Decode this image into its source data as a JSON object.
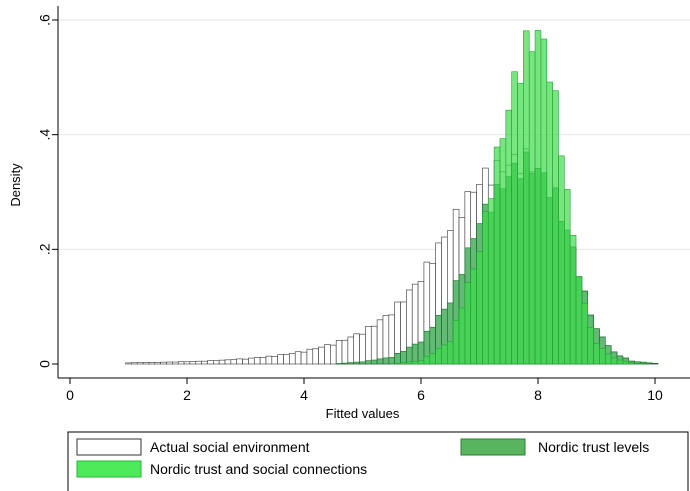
{
  "chart_data": {
    "type": "histogram",
    "xlabel": "Fitted values",
    "ylabel": "Density",
    "xlim": [
      -0.3,
      10.5
    ],
    "ylim": [
      0,
      0.62
    ],
    "x_ticks": [
      0,
      2,
      4,
      6,
      8,
      10
    ],
    "y_ticks": [
      0,
      0.2,
      0.4,
      0.6
    ],
    "y_tick_labels": [
      "0",
      ".2",
      ".4",
      ".6"
    ],
    "bin_width": 0.1,
    "legend_position": "bottom",
    "grid": true,
    "series": [
      {
        "name": "Actual social environment",
        "style": "outline",
        "fill": "#ffffff",
        "stroke": "#333333",
        "bins": [
          {
            "x": 1.0,
            "y": 0.002
          },
          {
            "x": 1.5,
            "y": 0.003
          },
          {
            "x": 2.0,
            "y": 0.004
          },
          {
            "x": 2.5,
            "y": 0.006
          },
          {
            "x": 3.0,
            "y": 0.009
          },
          {
            "x": 3.5,
            "y": 0.014
          },
          {
            "x": 4.0,
            "y": 0.022
          },
          {
            "x": 4.5,
            "y": 0.035
          },
          {
            "x": 5.0,
            "y": 0.055
          },
          {
            "x": 5.5,
            "y": 0.09
          },
          {
            "x": 6.0,
            "y": 0.15
          },
          {
            "x": 6.5,
            "y": 0.24
          },
          {
            "x": 7.0,
            "y": 0.32
          },
          {
            "x": 7.5,
            "y": 0.35
          },
          {
            "x": 7.8,
            "y": 0.355
          },
          {
            "x": 8.0,
            "y": 0.34
          },
          {
            "x": 8.3,
            "y": 0.29
          },
          {
            "x": 8.6,
            "y": 0.2
          },
          {
            "x": 8.8,
            "y": 0.12
          },
          {
            "x": 9.0,
            "y": 0.06
          },
          {
            "x": 9.3,
            "y": 0.02
          },
          {
            "x": 9.6,
            "y": 0.005
          },
          {
            "x": 10.0,
            "y": 0.001
          }
        ]
      },
      {
        "name": "Nordic trust levels",
        "style": "filled",
        "fill": "#2fa347",
        "stroke": "#1d6e2f",
        "opacity": 0.75,
        "bins": [
          {
            "x": 4.5,
            "y": 0.0
          },
          {
            "x": 5.0,
            "y": 0.004
          },
          {
            "x": 5.5,
            "y": 0.012
          },
          {
            "x": 6.0,
            "y": 0.04
          },
          {
            "x": 6.5,
            "y": 0.11
          },
          {
            "x": 7.0,
            "y": 0.25
          },
          {
            "x": 7.5,
            "y": 0.33
          },
          {
            "x": 7.8,
            "y": 0.35
          },
          {
            "x": 8.0,
            "y": 0.34
          },
          {
            "x": 8.3,
            "y": 0.29
          },
          {
            "x": 8.6,
            "y": 0.2
          },
          {
            "x": 8.8,
            "y": 0.12
          },
          {
            "x": 9.0,
            "y": 0.06
          },
          {
            "x": 9.3,
            "y": 0.02
          },
          {
            "x": 9.6,
            "y": 0.005
          },
          {
            "x": 10.0,
            "y": 0.001
          }
        ]
      },
      {
        "name": "Nordic trust and social connections",
        "style": "filled",
        "fill": "#3ddc4a",
        "stroke": "#24a034",
        "opacity": 0.7,
        "bins": [
          {
            "x": 5.5,
            "y": 0.0
          },
          {
            "x": 6.0,
            "y": 0.006
          },
          {
            "x": 6.5,
            "y": 0.04
          },
          {
            "x": 7.0,
            "y": 0.2
          },
          {
            "x": 7.3,
            "y": 0.36
          },
          {
            "x": 7.6,
            "y": 0.49
          },
          {
            "x": 7.8,
            "y": 0.55
          },
          {
            "x": 8.0,
            "y": 0.58
          },
          {
            "x": 8.2,
            "y": 0.52
          },
          {
            "x": 8.4,
            "y": 0.38
          },
          {
            "x": 8.6,
            "y": 0.22
          },
          {
            "x": 8.8,
            "y": 0.1
          },
          {
            "x": 9.0,
            "y": 0.035
          },
          {
            "x": 9.3,
            "y": 0.01
          },
          {
            "x": 9.6,
            "y": 0.002
          },
          {
            "x": 10.0,
            "y": 0.0
          }
        ]
      }
    ]
  },
  "legend": {
    "items": [
      {
        "label": "Actual social environment",
        "swatch_fill": "#ffffff",
        "swatch_stroke": "#333333"
      },
      {
        "label": "Nordic trust levels",
        "swatch_fill": "#58b45f",
        "swatch_stroke": "#2e7d35"
      },
      {
        "label": "Nordic trust and social connections",
        "swatch_fill": "#4fea5a",
        "swatch_stroke": "#2ab63b"
      }
    ]
  }
}
